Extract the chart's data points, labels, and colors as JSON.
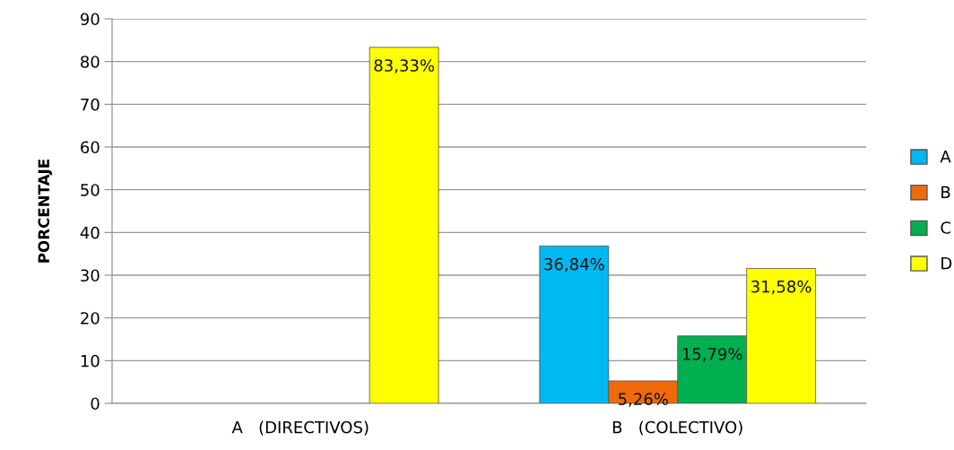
{
  "chart_data": {
    "type": "bar",
    "ylabel": "PORCENTAJE",
    "categories": [
      "A   (DIRECTIVOS)",
      "B   (COLECTIVO)"
    ],
    "series": [
      {
        "name": "A",
        "color": "#00b8f2",
        "values": [
          null,
          36.84
        ],
        "value_labels": [
          null,
          "36,84%"
        ]
      },
      {
        "name": "B",
        "color": "#f06a0a",
        "values": [
          null,
          5.26
        ],
        "value_labels": [
          null,
          "5,26%"
        ]
      },
      {
        "name": "C",
        "color": "#00b050",
        "values": [
          null,
          15.79
        ],
        "value_labels": [
          null,
          "15,79%"
        ]
      },
      {
        "name": "D",
        "color": "#ffff00",
        "values": [
          83.33,
          31.58
        ],
        "value_labels": [
          "83,33%",
          "31,58%"
        ]
      }
    ],
    "ylim": [
      0,
      90
    ],
    "yticks": [
      0,
      10,
      20,
      30,
      40,
      50,
      60,
      70,
      80,
      90
    ],
    "grid": "y",
    "legend": "right"
  }
}
